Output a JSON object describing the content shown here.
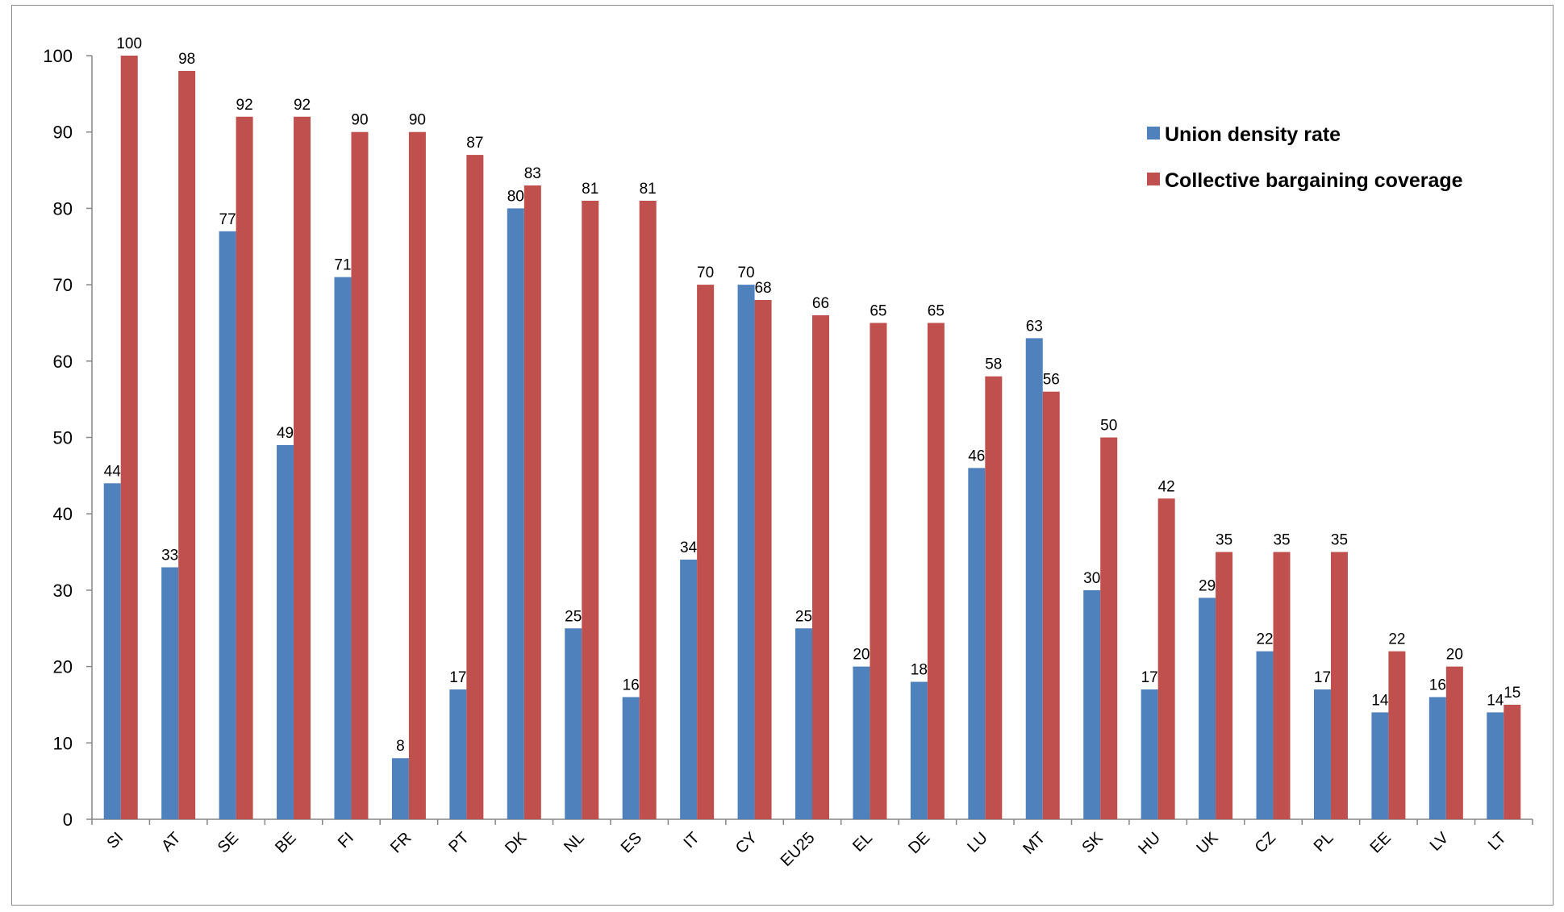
{
  "chart_data": {
    "type": "bar",
    "categories": [
      "SI",
      "AT",
      "SE",
      "BE",
      "FI",
      "FR",
      "PT",
      "DK",
      "NL",
      "ES",
      "IT",
      "CY",
      "EU25",
      "EL",
      "DE",
      "LU",
      "MT",
      "SK",
      "HU",
      "UK",
      "CZ",
      "PL",
      "EE",
      "LV",
      "LT"
    ],
    "series": [
      {
        "name": "Union density rate",
        "color": "#4f81bd",
        "values": [
          44,
          33,
          77,
          49,
          71,
          8,
          17,
          80,
          25,
          16,
          34,
          70,
          25,
          20,
          18,
          46,
          63,
          30,
          17,
          29,
          22,
          17,
          14,
          16,
          14
        ]
      },
      {
        "name": "Collective bargaining coverage",
        "color": "#c0504d",
        "values": [
          100,
          98,
          92,
          92,
          90,
          90,
          87,
          83,
          81,
          81,
          70,
          68,
          66,
          65,
          65,
          58,
          56,
          50,
          42,
          35,
          35,
          35,
          22,
          20,
          15
        ]
      }
    ],
    "title": "",
    "xlabel": "",
    "ylabel": "",
    "ylim": [
      0,
      100
    ],
    "yticks": [
      0,
      10,
      20,
      30,
      40,
      50,
      60,
      70,
      80,
      90,
      100
    ],
    "grid": false,
    "legend": "top-right",
    "data_labels": true
  }
}
